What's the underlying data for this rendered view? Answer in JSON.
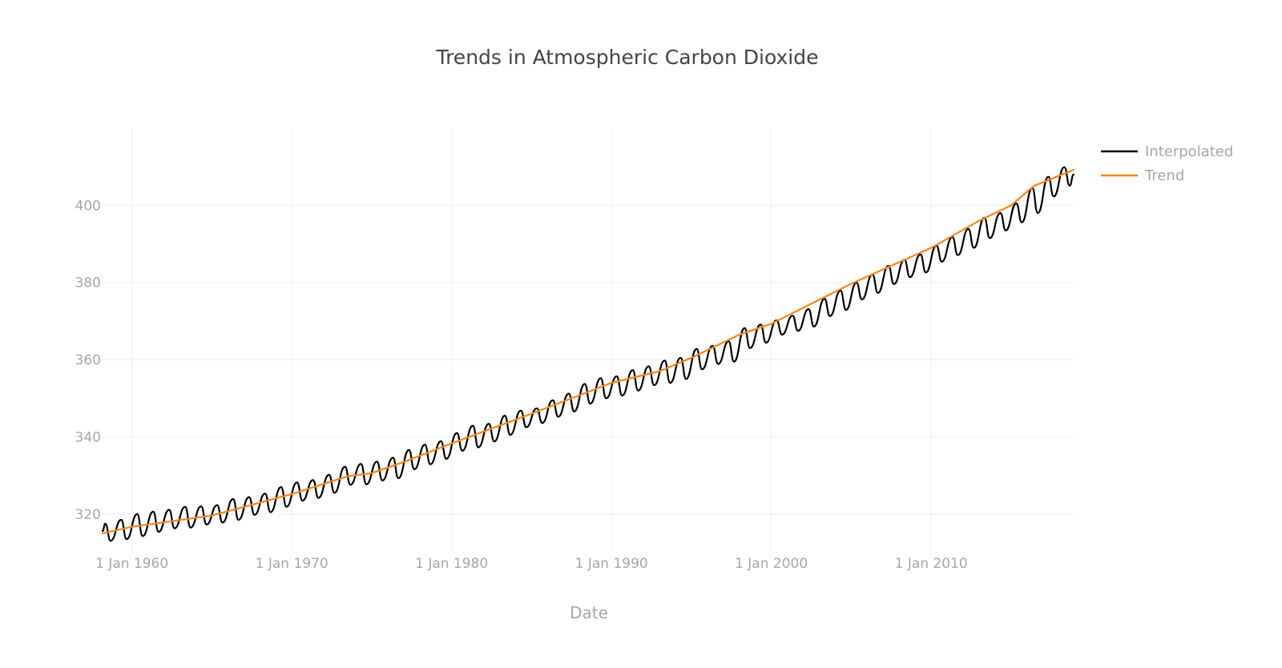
{
  "chart_data": {
    "type": "line",
    "title": "Trends in Atmospheric Carbon Dioxide",
    "xlabel": "Date",
    "ylabel": "",
    "x_axis_type": "date",
    "xlim": [
      "1958-03-01",
      "2018-12-01"
    ],
    "ylim": [
      310,
      420
    ],
    "x_ticks": [
      {
        "value": "1960-01-01",
        "label": "1 Jan 1960"
      },
      {
        "value": "1970-01-01",
        "label": "1 Jan 1970"
      },
      {
        "value": "1980-01-01",
        "label": "1 Jan 1980"
      },
      {
        "value": "1990-01-01",
        "label": "1 Jan 1990"
      },
      {
        "value": "2000-01-01",
        "label": "1 Jan 2000"
      },
      {
        "value": "2010-01-01",
        "label": "1 Jan 2010"
      }
    ],
    "y_ticks": [
      {
        "value": 320,
        "label": "320"
      },
      {
        "value": 340,
        "label": "340"
      },
      {
        "value": 360,
        "label": "360"
      },
      {
        "value": 380,
        "label": "380"
      },
      {
        "value": 400,
        "label": "400"
      }
    ],
    "grid": true,
    "legend_position": "top-right",
    "series": [
      {
        "name": "Interpolated",
        "color": "#000000",
        "x": [
          "1958-03-01",
          "1958-05-01",
          "1958-09-01",
          "1959-05-01",
          "1959-09-01",
          "1960-05-01",
          "1960-09-01",
          "1961-05-01",
          "1961-09-01",
          "1962-05-01",
          "1962-09-01",
          "1963-05-01",
          "1963-09-01",
          "1964-05-01",
          "1964-09-01",
          "1965-05-01",
          "1965-09-01",
          "1966-05-01",
          "1966-09-01",
          "1967-05-01",
          "1967-09-01",
          "1968-05-01",
          "1968-09-01",
          "1969-05-01",
          "1969-09-01",
          "1970-05-01",
          "1970-09-01",
          "1971-05-01",
          "1971-09-01",
          "1972-05-01",
          "1972-09-01",
          "1973-05-01",
          "1973-09-01",
          "1974-05-01",
          "1974-09-01",
          "1975-05-01",
          "1975-09-01",
          "1976-05-01",
          "1976-09-01",
          "1977-05-01",
          "1977-09-01",
          "1978-05-01",
          "1978-09-01",
          "1979-05-01",
          "1979-09-01",
          "1980-05-01",
          "1980-09-01",
          "1981-05-01",
          "1981-09-01",
          "1982-05-01",
          "1982-09-01",
          "1983-05-01",
          "1983-09-01",
          "1984-05-01",
          "1984-09-01",
          "1985-05-01",
          "1985-09-01",
          "1986-05-01",
          "1986-09-01",
          "1987-05-01",
          "1987-09-01",
          "1988-05-01",
          "1988-09-01",
          "1989-05-01",
          "1989-09-01",
          "1990-05-01",
          "1990-09-01",
          "1991-05-01",
          "1991-09-01",
          "1992-05-01",
          "1992-09-01",
          "1993-05-01",
          "1993-09-01",
          "1994-05-01",
          "1994-09-01",
          "1995-05-01",
          "1995-09-01",
          "1996-05-01",
          "1996-09-01",
          "1997-05-01",
          "1997-09-01",
          "1998-05-01",
          "1998-09-01",
          "1999-05-01",
          "1999-09-01",
          "2000-05-01",
          "2000-09-01",
          "2001-05-01",
          "2001-09-01",
          "2002-05-01",
          "2002-09-01",
          "2003-05-01",
          "2003-09-01",
          "2004-05-01",
          "2004-09-01",
          "2005-05-01",
          "2005-09-01",
          "2006-05-01",
          "2006-09-01",
          "2007-05-01",
          "2007-09-01",
          "2008-05-01",
          "2008-09-01",
          "2009-05-01",
          "2009-09-01",
          "2010-05-01",
          "2010-09-01",
          "2011-05-01",
          "2011-09-01",
          "2012-05-01",
          "2012-09-01",
          "2013-05-01",
          "2013-09-01",
          "2014-05-01",
          "2014-09-01",
          "2015-05-01",
          "2015-09-01",
          "2016-05-01",
          "2016-09-01",
          "2017-05-01",
          "2017-09-01",
          "2018-05-01",
          "2018-09-01",
          "2018-12-01"
        ],
        "values": [
          315.6,
          317.5,
          313.1,
          318.5,
          313.5,
          320.0,
          314.3,
          320.6,
          315.4,
          321.1,
          316.3,
          321.9,
          316.5,
          322.0,
          317.3,
          322.3,
          317.8,
          323.9,
          318.5,
          324.4,
          319.8,
          325.3,
          320.5,
          327.0,
          321.9,
          328.2,
          323.5,
          328.8,
          324.2,
          330.2,
          325.5,
          332.3,
          327.6,
          333.0,
          327.7,
          333.6,
          328.7,
          334.6,
          329.3,
          336.6,
          331.6,
          338.0,
          332.9,
          338.9,
          334.3,
          341.0,
          336.4,
          342.9,
          337.3,
          343.4,
          338.8,
          345.5,
          340.5,
          346.8,
          342.5,
          347.4,
          343.6,
          349.5,
          345.2,
          351.2,
          346.6,
          353.7,
          348.6,
          355.2,
          350.0,
          355.7,
          350.7,
          357.3,
          352.0,
          358.3,
          353.4,
          359.8,
          354.0,
          360.5,
          355.0,
          362.8,
          357.5,
          363.6,
          358.9,
          364.8,
          359.5,
          368.2,
          363.0,
          369.1,
          364.4,
          370.2,
          366.5,
          371.4,
          367.5,
          373.1,
          368.6,
          375.8,
          371.3,
          377.9,
          372.9,
          380.0,
          375.6,
          382.1,
          377.3,
          384.3,
          379.6,
          385.9,
          381.4,
          387.3,
          382.6,
          389.6,
          385.4,
          391.8,
          387.1,
          393.9,
          389.0,
          396.8,
          391.5,
          398.0,
          393.5,
          400.5,
          395.6,
          404.5,
          398.0,
          407.4,
          402.3,
          409.9,
          405.1,
          408.0
        ]
      },
      {
        "name": "Trend",
        "color": "#f58518",
        "x": [
          "1958-03-01",
          "1960-01-01",
          "1965-01-01",
          "1970-01-01",
          "1973-07-01",
          "1975-01-01",
          "1977-01-01",
          "1980-01-01",
          "1985-01-01",
          "1990-01-01",
          "1993-01-01",
          "1995-01-01",
          "1998-01-01",
          "2000-01-01",
          "2005-01-01",
          "2010-01-01",
          "2013-01-01",
          "2015-01-01",
          "2016-06-01",
          "2018-12-01"
        ],
        "values": [
          315.0,
          316.7,
          319.6,
          325.2,
          329.8,
          330.6,
          333.5,
          338.3,
          346.0,
          354.0,
          357.0,
          360.5,
          366.5,
          369.3,
          379.7,
          389.0,
          396.0,
          400.0,
          405.0,
          409.2
        ]
      }
    ]
  }
}
